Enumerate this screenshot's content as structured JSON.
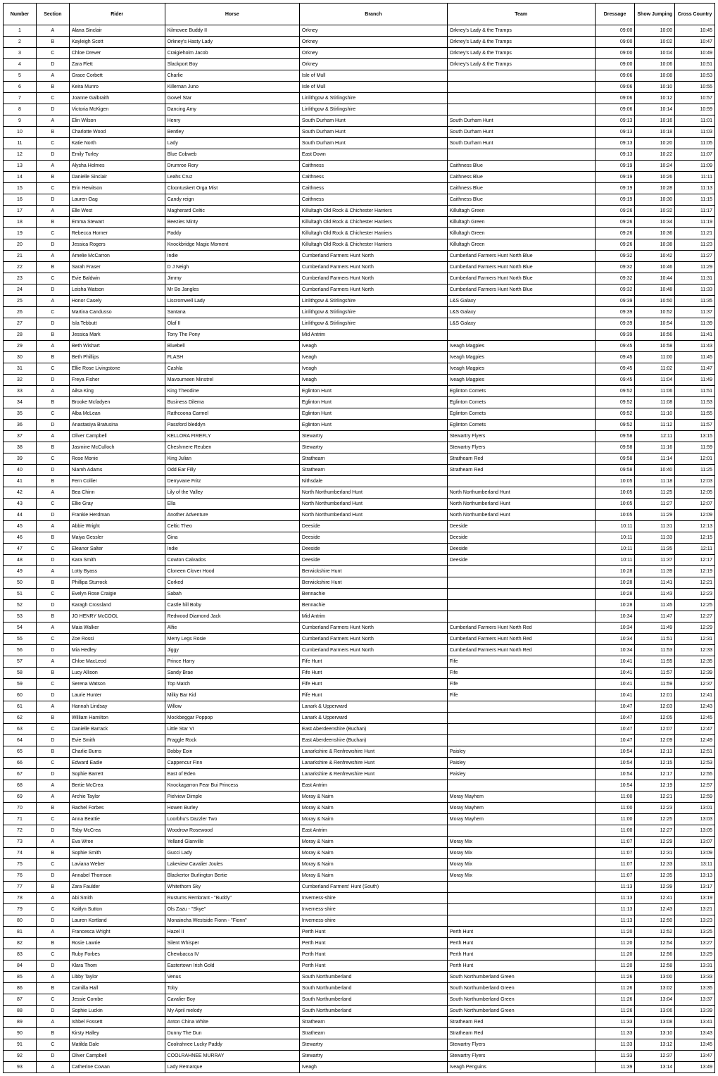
{
  "columns": [
    "Number",
    "Section",
    "Rider",
    "Horse",
    "Branch",
    "Team",
    "Dressage",
    "Show Jumping",
    "Cross Country"
  ],
  "column_align": [
    "center",
    "center",
    "left",
    "left",
    "left",
    "left",
    "right",
    "right",
    "right"
  ],
  "rows": [
    [
      "1",
      "A",
      "Alana Sinclair",
      "Kilmovee Buddy II",
      "Orkney",
      "Orkney's Lady & the Tramps",
      "09:00",
      "10:00",
      "10:45"
    ],
    [
      "2",
      "B",
      "Kayleigh Scott",
      "Orkney's Hasty Lady",
      "Orkney",
      "Orkney's Lady & the Tramps",
      "09:00",
      "10:02",
      "10:47"
    ],
    [
      "3",
      "C",
      "Chloe Drever",
      "Craigieholm Jacob",
      "Orkney",
      "Orkney's Lady & the Tramps",
      "09:00",
      "10:04",
      "10:49"
    ],
    [
      "4",
      "D",
      "Zara Flett",
      "Slackport Boy",
      "Orkney",
      "Orkney's Lady & the Tramps",
      "09:00",
      "10:06",
      "10:51"
    ],
    [
      "5",
      "A",
      "Grace Corbett",
      "Charlie",
      "Isle of Mull",
      "",
      "09:06",
      "10:08",
      "10:53"
    ],
    [
      "6",
      "B",
      "Keira Munro",
      "Killernan Juno",
      "Isle of Mull",
      "",
      "09:06",
      "10:10",
      "10:55"
    ],
    [
      "7",
      "C",
      "Joanne Galbraith",
      "Gowel Star",
      "Linlithgow & Stirlingshire",
      "",
      "09:06",
      "10:12",
      "10:57"
    ],
    [
      "8",
      "D",
      "Victoria McKigen",
      "Dancing Amy",
      "Linlithgow & Stirlingshire",
      "",
      "09:06",
      "10:14",
      "10:59"
    ],
    [
      "9",
      "A",
      "Elin Wilson",
      "Henry",
      "South Durham Hunt",
      "South Durham Hunt",
      "09:13",
      "10:16",
      "11:01"
    ],
    [
      "10",
      "B",
      "Charlotte Wood",
      "Bentley",
      "South Durham Hunt",
      "South Durham Hunt",
      "09:13",
      "10:18",
      "11:03"
    ],
    [
      "11",
      "C",
      "Katie North",
      "Lady",
      "South Durham Hunt",
      "South Durham Hunt",
      "09:13",
      "10:20",
      "11:05"
    ],
    [
      "12",
      "D",
      "Emily Turley",
      "Blue Cobweb",
      "East Down",
      "",
      "09:13",
      "10:22",
      "11:07"
    ],
    [
      "13",
      "A",
      "Alysha Holmes",
      "Drumroe Rory",
      "Caithness",
      "Caithness Blue",
      "09:19",
      "10:24",
      "11:09"
    ],
    [
      "14",
      "B",
      "Danielle Sinclair",
      "Leahs Cruz",
      "Caithness",
      "Caithness Blue",
      "09:19",
      "10:26",
      "11:11"
    ],
    [
      "15",
      "C",
      "Erin Hewitson",
      "Cloontuskert Orga Mist",
      "Caithness",
      "Caithness Blue",
      "09:19",
      "10:28",
      "11:13"
    ],
    [
      "16",
      "D",
      "Lauren Oag",
      "Candy reign",
      "Caithness",
      "Caithness Blue",
      "09:19",
      "10:30",
      "11:15"
    ],
    [
      "17",
      "A",
      "Elle West",
      "Magherard Celtic",
      "Killultagh Old Rock & Chichester Harriers",
      "Killultagh Green",
      "09:26",
      "10:32",
      "11:17"
    ],
    [
      "18",
      "B",
      "Emma Stewart",
      "Beezies Minty",
      "Killultagh Old Rock & Chichester Harriers",
      "Killultagh Green",
      "09:26",
      "10:34",
      "11:19"
    ],
    [
      "19",
      "C",
      "Rebecca Horner",
      "Paddy",
      "Killultagh Old Rock & Chichester Harriers",
      "Killultagh Green",
      "09:26",
      "10:36",
      "11:21"
    ],
    [
      "20",
      "D",
      "Jessica Rogers",
      "Knockbridge Magic Moment",
      "Killultagh Old Rock & Chichester Harriers",
      "Killultagh Green",
      "09:26",
      "10:38",
      "11:23"
    ],
    [
      "21",
      "A",
      "Amelie McCarron",
      "Indie",
      "Cumberland Farmers Hunt North",
      "Cumberland Farmers Hunt North Blue",
      "09:32",
      "10:42",
      "11:27"
    ],
    [
      "22",
      "B",
      "Sarah Fraser",
      "D J Neigh",
      "Cumberland Farmers Hunt North",
      "Cumberland Farmers Hunt North Blue",
      "09:32",
      "10:46",
      "11:29"
    ],
    [
      "23",
      "C",
      "Evie Baldwin",
      "Jimmy",
      "Cumberland Farmers Hunt North",
      "Cumberland Farmers Hunt North Blue",
      "09:32",
      "10:44",
      "11:31"
    ],
    [
      "24",
      "D",
      "Leisha Watson",
      "Mr Bo Jangles",
      "Cumberland Farmers Hunt North",
      "Cumberland Farmers Hunt North Blue",
      "09:32",
      "10:48",
      "11:33"
    ],
    [
      "25",
      "A",
      "Honor Casely",
      "Liscromwell Lady",
      "Linlithgow & Stirlingshire",
      "L&S Galaxy",
      "09:39",
      "10:50",
      "11:35"
    ],
    [
      "26",
      "C",
      "Martina Candusso",
      "Santana",
      "Linlithgow & Stirlingshire",
      "L&S Galaxy",
      "09:39",
      "10:52",
      "11:37"
    ],
    [
      "27",
      "D",
      "Isla Tebbutt",
      "Olaf II",
      "Linlithgow & Stirlingshire",
      "L&S Galaxy",
      "09:39",
      "10:54",
      "11:39"
    ],
    [
      "28",
      "B",
      "Jessica Mark",
      "Tony The Pony",
      "Mid Antrim",
      "",
      "09:39",
      "10:56",
      "11:41"
    ],
    [
      "29",
      "A",
      "Beth Wishart",
      "Bluebell",
      "Iveagh",
      "Iveagh Magpies",
      "09:45",
      "10:58",
      "11:43"
    ],
    [
      "30",
      "B",
      "Beth Phillips",
      "FLASH",
      "Iveagh",
      "Iveagh Magpies",
      "09:45",
      "11:00",
      "11:45"
    ],
    [
      "31",
      "C",
      "Ellie Rose Livingstone",
      "Cashla",
      "Iveagh",
      "Iveagh Magpies",
      "09:45",
      "11:02",
      "11:47"
    ],
    [
      "32",
      "D",
      "Freya Fisher",
      "Mavourneen Minstrel",
      "Iveagh",
      "Iveagh Magpies",
      "09:45",
      "11:04",
      "11:49"
    ],
    [
      "33",
      "A",
      "Ailsa King",
      "King Theodine",
      "Eglinton Hunt",
      "Eglinton Comets",
      "09:52",
      "11:06",
      "11:51"
    ],
    [
      "34",
      "B",
      "Brooke Mcfadyen",
      "Business Dilema",
      "Eglinton Hunt",
      "Eglinton Comets",
      "09:52",
      "11:08",
      "11:53"
    ],
    [
      "35",
      "C",
      "Alba McLean",
      "Rathcoona Carmel",
      "Eglinton Hunt",
      "Eglinton Comets",
      "09:52",
      "11:10",
      "11:55"
    ],
    [
      "36",
      "D",
      "Anastasiya Bratusina",
      "Passford bleddyn",
      "Eglinton Hunt",
      "Eglinton Comets",
      "09:52",
      "11:12",
      "11:57"
    ],
    [
      "37",
      "A",
      "Oliver Campbell",
      "KELLORA FIREFLY",
      "Stewartry",
      "Stewartry Flyers",
      "09:58",
      "12:11",
      "13:15"
    ],
    [
      "38",
      "B",
      "Jasmine McCulloch",
      "Cheshmere Reuben",
      "Stewartry",
      "Stewartry Flyers",
      "09:58",
      "11:16",
      "11:59"
    ],
    [
      "39",
      "C",
      "Rose Monie",
      "King Julian",
      "Strathearn",
      "Strathearn Red",
      "09:58",
      "11:14",
      "12:01"
    ],
    [
      "40",
      "D",
      "Niamh Adams",
      "Odd Ear Filly",
      "Strathearn",
      "Strathearn Red",
      "09:58",
      "10:40",
      "11:25"
    ],
    [
      "41",
      "B",
      "Fern Collier",
      "Derryvane Fritz",
      "Nithsdale",
      "",
      "10:05",
      "11:18",
      "12:03"
    ],
    [
      "42",
      "A",
      "Bea Chinn",
      "Lily of the Valley",
      "North Northumberland Hunt",
      "North Northumberland Hunt",
      "10:05",
      "11:25",
      "12:05"
    ],
    [
      "43",
      "C",
      "Ellie Gray",
      "Ella",
      "North Northumberland Hunt",
      "North Northumberland Hunt",
      "10:05",
      "11:27",
      "12:07"
    ],
    [
      "44",
      "D",
      "Frankie Herdman",
      "Another Adventure",
      "North Northumberland Hunt",
      "North Northumberland Hunt",
      "10:05",
      "11:29",
      "12:09"
    ],
    [
      "45",
      "A",
      "Abbie Wright",
      "Celtic Theo",
      "Deeside",
      "Deeside",
      "10:11",
      "11:31",
      "12:13"
    ],
    [
      "46",
      "B",
      "Maiya Gessler",
      "Gina",
      "Deeside",
      "Deeside",
      "10:11",
      "11:33",
      "12:15"
    ],
    [
      "47",
      "C",
      "Eleanor Salter",
      "Indie",
      "Deeside",
      "Deeside",
      "10:11",
      "11:35",
      "12:11"
    ],
    [
      "48",
      "D",
      "Kara Smith",
      "Cowton Calvados",
      "Deeside",
      "Deeside",
      "10:11",
      "11:37",
      "12:17"
    ],
    [
      "49",
      "A",
      "Lotty Byass",
      "Cloneen Clover Hood",
      "Berwickshire Hunt",
      "",
      "10:28",
      "11:39",
      "12:19"
    ],
    [
      "50",
      "B",
      "Phillipa Sturrock",
      "Corked",
      "Berwickshire Hunt",
      "",
      "10:28",
      "11:41",
      "12:21"
    ],
    [
      "51",
      "C",
      "Evelyn Rose Craigie",
      "Sabah",
      "Bennachie",
      "",
      "10:28",
      "11:43",
      "12:23"
    ],
    [
      "52",
      "D",
      "Karagh Crossland",
      "Castle hill Boby",
      "Bennachie",
      "",
      "10:28",
      "11:45",
      "12:25"
    ],
    [
      "53",
      "B",
      "JO HENRY McCOOL",
      "Redwood Diamond Jack",
      "Mid Antrim",
      "",
      "10:34",
      "11:47",
      "12:27"
    ],
    [
      "54",
      "A",
      "Maia Walker",
      "Alfie",
      "Cumberland Farmers Hunt North",
      "Cumberland Farmers Hunt North Red",
      "10:34",
      "11:49",
      "12:29"
    ],
    [
      "55",
      "C",
      "Zoe Rossi",
      "Merry Legs Rosie",
      "Cumberland Farmers Hunt North",
      "Cumberland Farmers Hunt North Red",
      "10:34",
      "11:51",
      "12:31"
    ],
    [
      "56",
      "D",
      "Mia Hedley",
      "Jiggy",
      "Cumberland Farmers Hunt North",
      "Cumberland Farmers Hunt North Red",
      "10:34",
      "11:53",
      "12:33"
    ],
    [
      "57",
      "A",
      "Chloe MacLeod",
      "Prince Harry",
      "Fife Hunt",
      "Fife",
      "10:41",
      "11:55",
      "12:35"
    ],
    [
      "58",
      "B",
      "Lucy Allison",
      "Sandy Brae",
      "Fife Hunt",
      "Fife",
      "10:41",
      "11:57",
      "12:39"
    ],
    [
      "59",
      "C",
      "Serena Watson",
      "Top Match",
      "Fife Hunt",
      "Fife",
      "10:41",
      "11:59",
      "12:37"
    ],
    [
      "60",
      "D",
      "Laurie Hunter",
      "Milky Bar Kid",
      "Fife Hunt",
      "Fife",
      "10:41",
      "12:01",
      "12:41"
    ],
    [
      "61",
      "A",
      "Hannah Lindsay",
      "Willow",
      "Lanark & Upperward",
      "",
      "10:47",
      "12:03",
      "12:43"
    ],
    [
      "62",
      "B",
      "William Hamilton",
      "Mockbeggar Poppop",
      "Lanark & Upperward",
      "",
      "10:47",
      "12:05",
      "12:45"
    ],
    [
      "63",
      "C",
      "Danielle Barrack",
      "Little Star VI",
      "East Aberdeenshire (Buchan)",
      "",
      "10:47",
      "12:07",
      "12:47"
    ],
    [
      "64",
      "D",
      "Evie Smith",
      "Fraggle Rock",
      "East Aberdeenshire (Buchan)",
      "",
      "10:47",
      "12:09",
      "12:49"
    ],
    [
      "65",
      "B",
      "Charlie Burns",
      "Bobby Eoin",
      "Lanarkshire & Renfrewshire Hunt",
      "Paisley",
      "10:54",
      "12:13",
      "12:51"
    ],
    [
      "66",
      "C",
      "Edward Eadie",
      "Cappencur Finn",
      "Lanarkshire & Renfrewshire Hunt",
      "Paisley",
      "10:54",
      "12:15",
      "12:53"
    ],
    [
      "67",
      "D",
      "Sophie Barrett",
      "East of Eden",
      "Lanarkshire & Renfrewshire Hunt",
      "Paisley",
      "10:54",
      "12:17",
      "12:55"
    ],
    [
      "68",
      "A",
      "Bertie McCrea",
      "Knockagarron Fear Bui Princess",
      "East Antrim",
      "",
      "10:54",
      "12:19",
      "12:57"
    ],
    [
      "69",
      "A",
      "Archie Taylor",
      "Pielview Dimple",
      "Moray & Nairn",
      "Moray Mayhem",
      "11:00",
      "12:21",
      "12:59"
    ],
    [
      "70",
      "B",
      "Rachel Forbes",
      "Howen Burley",
      "Moray & Nairn",
      "Moray Mayhem",
      "11:00",
      "12:23",
      "13:01"
    ],
    [
      "71",
      "C",
      "Anna Beattie",
      "Loorbhu's Dazzler Two",
      "Moray & Nairn",
      "Moray Mayhem",
      "11:00",
      "12:25",
      "13:03"
    ],
    [
      "72",
      "D",
      "Toby McCrea",
      "Woodrow Rosewood",
      "East Antrim",
      "",
      "11:00",
      "12:27",
      "13:05"
    ],
    [
      "73",
      "A",
      "Eva Wroe",
      "Yelland Glanville",
      "Moray & Nairn",
      "Moray Mix",
      "11:07",
      "12:29",
      "13:07"
    ],
    [
      "74",
      "B",
      "Sophie Smith",
      "Gucci Lady",
      "Moray & Nairn",
      "Moray Mix",
      "11:07",
      "12:31",
      "13:09"
    ],
    [
      "75",
      "C",
      "Laviana Weber",
      "Lakeview Cavalier Joules",
      "Moray & Nairn",
      "Moray Mix",
      "11:07",
      "12:33",
      "13:11"
    ],
    [
      "76",
      "D",
      "Annabel Thomson",
      "Blackertor Burlington Bertie",
      "Moray & Nairn",
      "Moray Mix",
      "11:07",
      "12:35",
      "13:13"
    ],
    [
      "77",
      "B",
      "Zara Faulder",
      "Whitethorn Sky",
      "Cumberland Farmers' Hunt (South)",
      "",
      "11:13",
      "12:39",
      "13:17"
    ],
    [
      "78",
      "A",
      "Abi Smith",
      "Rustums Rembrant - \"Buddy\"",
      "Inverness-shire",
      "",
      "11:13",
      "12:41",
      "13:19"
    ],
    [
      "79",
      "C",
      "Kaitlyn Sutton",
      "Ols Zazu - \"Skye\"",
      "Inverness-shire",
      "",
      "11:13",
      "12:43",
      "13:21"
    ],
    [
      "80",
      "D",
      "Lauren Kortland",
      "Monaincha Westside Fionn - \"Fionn\"",
      "Inverness-shire",
      "",
      "11:13",
      "12:50",
      "13:23"
    ],
    [
      "81",
      "A",
      "Francesca Wright",
      "Hazel II",
      "Perth Hunt",
      "Perth Hunt",
      "11:20",
      "12:52",
      "13:25"
    ],
    [
      "82",
      "B",
      "Rosie Lawrie",
      "Silent Whisper",
      "Perth Hunt",
      "Perth Hunt",
      "11:20",
      "12:54",
      "13:27"
    ],
    [
      "83",
      "C",
      "Ruby Forbes",
      "Chewbacca IV",
      "Perth Hunt",
      "Perth Hunt",
      "11:20",
      "12:56",
      "13:29"
    ],
    [
      "84",
      "D",
      "Klara Thom",
      "Eastertown Irish Gold",
      "Perth Hunt",
      "Perth Hunt",
      "11:20",
      "12:58",
      "13:31"
    ],
    [
      "85",
      "A",
      "Libby Taylor",
      "Venus",
      "South Northumberland",
      "South Northumberland Green",
      "11:26",
      "13:00",
      "13:33"
    ],
    [
      "86",
      "B",
      "Camilla Hall",
      "Toby",
      "South Northumberland",
      "South Northumberland Green",
      "11:26",
      "13:02",
      "13:35"
    ],
    [
      "87",
      "C",
      "Jessie Combe",
      "Cavalier Boy",
      "South Northumberland",
      "South Northumberland Green",
      "11:26",
      "13:04",
      "13:37"
    ],
    [
      "88",
      "D",
      "Sophie Luckin",
      "My April melody",
      "South Northumberland",
      "South Northumberland Green",
      "11:26",
      "13:06",
      "13:39"
    ],
    [
      "89",
      "A",
      "Ishbel Fossett",
      "Anton China White",
      "Strathearn",
      "Strathearn Red",
      "11:33",
      "13:08",
      "13:41"
    ],
    [
      "90",
      "B",
      "Kirsty Halley",
      "Dunny The Dun",
      "Strathearn",
      "Strathearn Red",
      "11:33",
      "13:10",
      "13:43"
    ],
    [
      "91",
      "C",
      "Matilda Dale",
      "Coolrahnee Lucky Paddy",
      "Stewartry",
      "Stewartry Flyers",
      "11:33",
      "13:12",
      "13:45"
    ],
    [
      "92",
      "D",
      "Oliver Campbell",
      "COOLRAHNEE MURRAY",
      "Stewartry",
      "Stewartry Flyers",
      "11:33",
      "12:37",
      "13:47"
    ],
    [
      "93",
      "A",
      "Catherine Cowan",
      "Lady Remarque",
      "Iveagh",
      "Iveagh Penguins",
      "11:39",
      "13:14",
      "13:49"
    ]
  ]
}
